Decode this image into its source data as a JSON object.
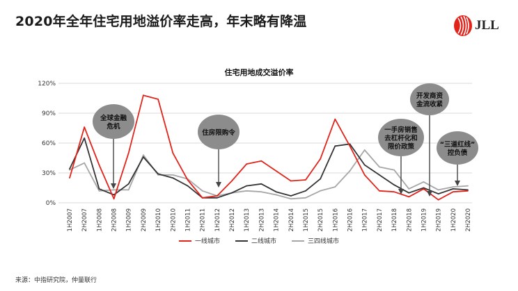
{
  "header": {
    "title": "2020年全年住宅用地溢价率走高，年末略有降温",
    "logo_text": "JLL"
  },
  "footer": {
    "source": "来源：中指研究院，仲量联行"
  },
  "colors": {
    "series1": "#e2231a",
    "series2": "#333333",
    "series3": "#a6a6a6",
    "callout": "#8c8c8c"
  },
  "chart_data": {
    "type": "line",
    "title": "住宅用地成交溢价率",
    "xlabel": "",
    "ylabel": "",
    "ylim": [
      0,
      120
    ],
    "y_ticks": [
      "0%",
      "30%",
      "60%",
      "90%",
      "120%"
    ],
    "y_tick_values": [
      0,
      30,
      60,
      90,
      120
    ],
    "x": [
      "1H2007",
      "2H2007",
      "1H2008",
      "2H2008",
      "1H2009",
      "2H2009",
      "1H2010",
      "2H2010",
      "1H2011",
      "2H2011",
      "1H2012",
      "2H2012",
      "1H2013",
      "2H2013",
      "1H2014",
      "2H2014",
      "1H2015",
      "2H2015",
      "1H2016",
      "2H2016",
      "1H2017",
      "2H2017",
      "1H2018",
      "2H2018",
      "1H2019",
      "2H2019",
      "1H2020",
      "2H2020"
    ],
    "series": [
      {
        "name": "一线城市",
        "color": "#e2231a",
        "values": [
          25,
          76,
          38,
          4,
          50,
          108,
          104,
          50,
          23,
          5,
          7,
          22,
          39,
          42,
          32,
          22,
          23,
          44,
          84,
          57,
          28,
          12,
          11,
          6,
          14,
          3,
          11,
          12
        ]
      },
      {
        "name": "二线城市",
        "color": "#333333",
        "values": [
          34,
          65,
          14,
          8,
          19,
          46,
          29,
          25,
          17,
          5,
          5,
          10,
          17,
          19,
          11,
          7,
          12,
          24,
          57,
          59,
          38,
          28,
          18,
          10,
          15,
          9,
          14,
          13
        ]
      },
      {
        "name": "三四线城市",
        "color": "#a6a6a6",
        "values": [
          33,
          40,
          12,
          13,
          13,
          48,
          28,
          28,
          24,
          12,
          7,
          10,
          12,
          11,
          8,
          4,
          5,
          12,
          16,
          32,
          53,
          36,
          33,
          14,
          21,
          13,
          16,
          17
        ]
      }
    ],
    "grid": true,
    "legend_position": "bottom",
    "annotations": [
      {
        "text": "全球金融\n危机",
        "target_index": 3
      },
      {
        "text": "住房限购令",
        "target_index": 10
      },
      {
        "text": "一手房销售\n去杠杆化和\n限价政策",
        "target_index": 23
      },
      {
        "text": "开发商资\n金流收紧",
        "target_index": 25
      },
      {
        "text": "“三道红线”\n控负债",
        "target_index": 27
      }
    ]
  }
}
